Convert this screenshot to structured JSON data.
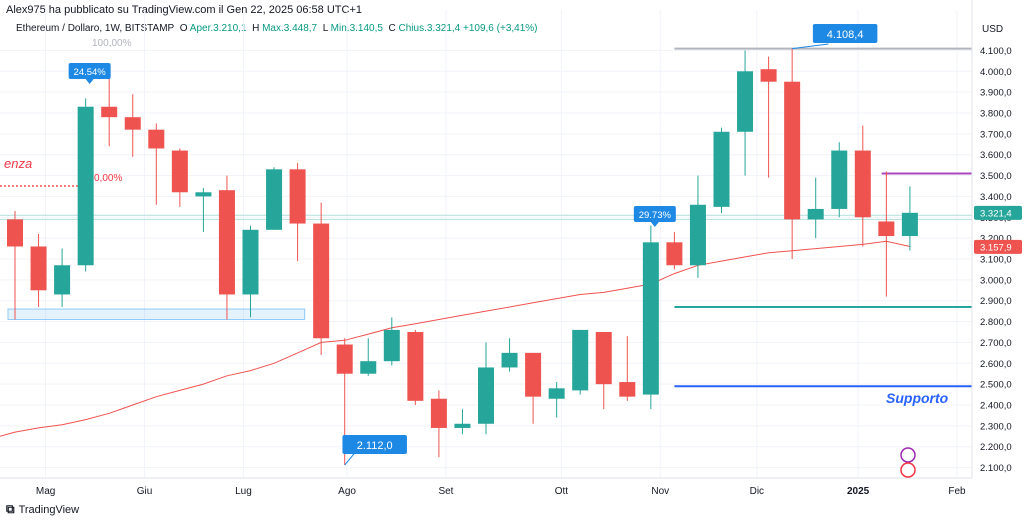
{
  "header": {
    "publisher_line": "Alex975 ha pubblicato su TradingView.com il Gen 22, 2025 06:58 UTC+1",
    "symbol": "Ethereum / Dollaro, 1W, BITSTAMP",
    "open_label": "O",
    "open_value": "Aper.3.210,1",
    "high_label": "H",
    "high_value": "Max.3.448,7",
    "low_label": "L",
    "low_value": "Min.3.140,5",
    "close_label": "C",
    "close_value": "Chius.3.321,4 +109,6 (+3,41%)"
  },
  "footer": {
    "logo_text": "TradingView"
  },
  "annotations": {
    "fib_100": "100,00%",
    "fib_0": "0,00%",
    "resistance_text": "enza",
    "support_text": "Supporto",
    "currency": "USD"
  },
  "colors": {
    "up": "#26a69a",
    "down": "#ef5350",
    "ma": "#ef5350",
    "support_blue": "#2962ff",
    "support_green": "#26a69a",
    "resistance_purple": "#ab47bc",
    "peak_line": "#b2b5be",
    "callout": "#1e88e5"
  },
  "chart_data": {
    "type": "candlestick",
    "ylim": [
      2050,
      4150
    ],
    "y_ticks": [
      "2.100,0",
      "2.200,0",
      "2.300,0",
      "2.400,0",
      "2.500,0",
      "2.600,0",
      "2.700,0",
      "2.800,0",
      "2.900,0",
      "3.000,0",
      "3.100,0",
      "3.200,0",
      "3.300,0",
      "3.400,0",
      "3.500,0",
      "3.600,0",
      "3.700,0",
      "3.800,0",
      "3.900,0",
      "4.000,0",
      "4.100,0"
    ],
    "y_tick_values": [
      2100,
      2200,
      2300,
      2400,
      2500,
      2600,
      2700,
      2800,
      2900,
      3000,
      3100,
      3200,
      3300,
      3400,
      3500,
      3600,
      3700,
      3800,
      3900,
      4000,
      4100
    ],
    "x_ticks": [
      "Mag",
      "Giu",
      "Lug",
      "Ago",
      "Set",
      "Ott",
      "Nov",
      "Dic",
      "2025",
      "Feb"
    ],
    "x_tick_weeks": [
      1.3,
      5.5,
      9.7,
      14.1,
      18.3,
      23.2,
      27.4,
      31.5,
      35.8,
      40.0
    ],
    "candles": [
      {
        "o": 3290,
        "h": 3330,
        "l": 2810,
        "c": 3160
      },
      {
        "o": 3160,
        "h": 3220,
        "l": 2870,
        "c": 2950
      },
      {
        "o": 2930,
        "h": 3150,
        "l": 2870,
        "c": 3070
      },
      {
        "o": 3070,
        "h": 3870,
        "l": 3040,
        "c": 3830
      },
      {
        "o": 3830,
        "h": 3970,
        "l": 3640,
        "c": 3780
      },
      {
        "o": 3780,
        "h": 3890,
        "l": 3590,
        "c": 3720
      },
      {
        "o": 3720,
        "h": 3750,
        "l": 3360,
        "c": 3630
      },
      {
        "o": 3620,
        "h": 3630,
        "l": 3350,
        "c": 3420
      },
      {
        "o": 3400,
        "h": 3440,
        "l": 3230,
        "c": 3420
      },
      {
        "o": 3430,
        "h": 3500,
        "l": 2810,
        "c": 2930
      },
      {
        "o": 2930,
        "h": 3260,
        "l": 2820,
        "c": 3240
      },
      {
        "o": 3240,
        "h": 3540,
        "l": 3240,
        "c": 3530
      },
      {
        "o": 3530,
        "h": 3560,
        "l": 3090,
        "c": 3270
      },
      {
        "o": 3270,
        "h": 3370,
        "l": 2640,
        "c": 2720
      },
      {
        "o": 2690,
        "h": 2720,
        "l": 2112,
        "c": 2550
      },
      {
        "o": 2550,
        "h": 2720,
        "l": 2540,
        "c": 2610
      },
      {
        "o": 2610,
        "h": 2820,
        "l": 2590,
        "c": 2760
      },
      {
        "o": 2750,
        "h": 2760,
        "l": 2400,
        "c": 2420
      },
      {
        "o": 2430,
        "h": 2470,
        "l": 2150,
        "c": 2290
      },
      {
        "o": 2290,
        "h": 2380,
        "l": 2260,
        "c": 2310
      },
      {
        "o": 2310,
        "h": 2700,
        "l": 2260,
        "c": 2580
      },
      {
        "o": 2580,
        "h": 2720,
        "l": 2560,
        "c": 2650
      },
      {
        "o": 2650,
        "h": 2650,
        "l": 2310,
        "c": 2440
      },
      {
        "o": 2430,
        "h": 2510,
        "l": 2340,
        "c": 2480
      },
      {
        "o": 2470,
        "h": 2760,
        "l": 2450,
        "c": 2760
      },
      {
        "o": 2750,
        "h": 2750,
        "l": 2380,
        "c": 2500
      },
      {
        "o": 2510,
        "h": 2730,
        "l": 2420,
        "c": 2440
      },
      {
        "o": 2450,
        "h": 3260,
        "l": 2380,
        "c": 3180
      },
      {
        "o": 3180,
        "h": 3230,
        "l": 3050,
        "c": 3070
      },
      {
        "o": 3070,
        "h": 3500,
        "l": 3010,
        "c": 3360
      },
      {
        "o": 3350,
        "h": 3730,
        "l": 3320,
        "c": 3710
      },
      {
        "o": 3710,
        "h": 4100,
        "l": 3500,
        "c": 4000
      },
      {
        "o": 4010,
        "h": 4070,
        "l": 3490,
        "c": 3950
      },
      {
        "o": 3950,
        "h": 4108.4,
        "l": 3100,
        "c": 3290
      },
      {
        "o": 3290,
        "h": 3490,
        "l": 3200,
        "c": 3340
      },
      {
        "o": 3340,
        "h": 3660,
        "l": 3300,
        "c": 3620
      },
      {
        "o": 3620,
        "h": 3740,
        "l": 3160,
        "c": 3300
      },
      {
        "o": 3280,
        "h": 3520,
        "l": 2920,
        "c": 3210
      },
      {
        "o": 3210,
        "h": 3448.7,
        "l": 3140.5,
        "c": 3321.4
      }
    ],
    "moving_average": [
      2270,
      2290,
      2305,
      2330,
      2360,
      2400,
      2440,
      2470,
      2500,
      2540,
      2565,
      2600,
      2650,
      2700,
      2710,
      2740,
      2770,
      2790,
      2810,
      2830,
      2850,
      2870,
      2890,
      2910,
      2930,
      2940,
      2960,
      2980,
      3030,
      3070,
      3090,
      3110,
      3130,
      3140,
      3150,
      3160,
      3170,
      3185,
      3160
    ],
    "horizontal_levels": {
      "peak": 4108.4,
      "resistance": 3510,
      "support_green": 2870,
      "support_blue": 2490
    },
    "support_zone": [
      2810,
      2860
    ],
    "fib_lines": [
      3450,
      3310,
      3290
    ],
    "price_labels": {
      "peak": "4.108,4",
      "low": "2.112,0",
      "current": "3.321,4",
      "ma_current": "3.157,9"
    },
    "pct_callouts": [
      {
        "text": "24.54%",
        "week": 3
      },
      {
        "text": "29.73%",
        "week": 27
      }
    ]
  }
}
